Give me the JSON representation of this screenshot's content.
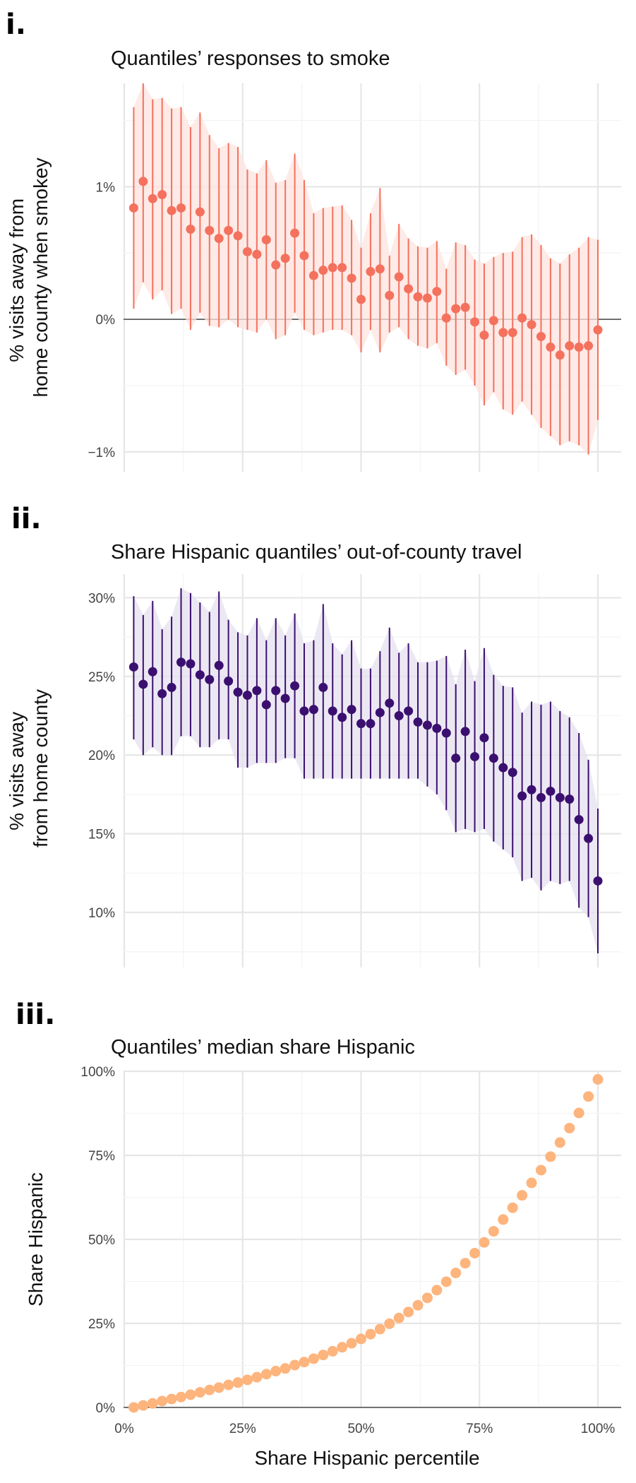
{
  "chart_data": [
    {
      "type": "scatter",
      "panel_label": "i.",
      "title": "Quantiles’ responses to smoke",
      "ylabel": "% visits away from home county when smokey",
      "xlim": [
        0,
        100
      ],
      "ylim": [
        -1.15,
        1.78
      ],
      "y_ticks": [
        -1,
        0,
        1
      ],
      "y_tick_labels": [
        "−1%",
        "0%",
        "1%"
      ],
      "zero_line": true,
      "color": "#f4715e",
      "band_color": "#fde3de",
      "x": [
        2,
        4,
        6,
        8,
        10,
        12,
        14,
        16,
        18,
        20,
        22,
        24,
        26,
        28,
        30,
        32,
        34,
        36,
        38,
        40,
        42,
        44,
        46,
        48,
        50,
        52,
        54,
        56,
        58,
        60,
        62,
        64,
        66,
        68,
        70,
        72,
        74,
        76,
        78,
        80,
        82,
        84,
        86,
        88,
        90,
        92,
        94,
        96,
        98,
        100
      ],
      "y": [
        0.84,
        1.04,
        0.91,
        0.94,
        0.82,
        0.84,
        0.68,
        0.81,
        0.67,
        0.61,
        0.67,
        0.63,
        0.51,
        0.49,
        0.6,
        0.41,
        0.46,
        0.65,
        0.48,
        0.33,
        0.37,
        0.39,
        0.39,
        0.31,
        0.15,
        0.36,
        0.38,
        0.18,
        0.32,
        0.23,
        0.17,
        0.16,
        0.21,
        0.01,
        0.08,
        0.09,
        -0.02,
        -0.12,
        -0.01,
        -0.1,
        -0.1,
        0.01,
        -0.04,
        -0.13,
        -0.21,
        -0.27,
        -0.2,
        -0.21,
        -0.2,
        -0.08
      ],
      "ci_low": [
        0.08,
        0.28,
        0.15,
        0.22,
        0.04,
        0.08,
        -0.08,
        0.05,
        -0.05,
        -0.06,
        0.0,
        -0.06,
        -0.08,
        -0.1,
        0.0,
        -0.15,
        -0.12,
        0.05,
        -0.08,
        -0.12,
        -0.1,
        -0.08,
        -0.08,
        -0.12,
        -0.25,
        -0.08,
        -0.25,
        -0.1,
        -0.06,
        -0.15,
        -0.2,
        -0.22,
        -0.18,
        -0.35,
        -0.42,
        -0.38,
        -0.5,
        -0.65,
        -0.55,
        -0.68,
        -0.72,
        -0.62,
        -0.72,
        -0.82,
        -0.88,
        -0.95,
        -0.92,
        -0.95,
        -1.02,
        -0.76
      ],
      "ci_high": [
        1.6,
        1.78,
        1.66,
        1.67,
        1.59,
        1.6,
        1.45,
        1.56,
        1.39,
        1.29,
        1.33,
        1.3,
        1.13,
        1.1,
        1.2,
        1.03,
        1.05,
        1.25,
        1.05,
        0.8,
        0.84,
        0.85,
        0.86,
        0.75,
        0.54,
        0.8,
        0.99,
        0.48,
        0.72,
        0.61,
        0.55,
        0.54,
        0.59,
        0.38,
        0.58,
        0.56,
        0.45,
        0.42,
        0.47,
        0.5,
        0.51,
        0.62,
        0.64,
        0.56,
        0.46,
        0.42,
        0.49,
        0.54,
        0.62,
        0.6
      ]
    },
    {
      "type": "scatter",
      "panel_label": "ii.",
      "title": "Share Hispanic quantiles’ out-of-county travel",
      "ylabel": "% visits away from home county",
      "xlim": [
        0,
        100
      ],
      "ylim": [
        6.5,
        31.5
      ],
      "y_ticks": [
        10,
        15,
        20,
        25,
        30
      ],
      "y_tick_labels": [
        "10%",
        "15%",
        "20%",
        "25%",
        "30%"
      ],
      "zero_line": false,
      "color": "#3b0f6f",
      "band_color": "#e5e0ef",
      "x": [
        2,
        4,
        6,
        8,
        10,
        12,
        14,
        16,
        18,
        20,
        22,
        24,
        26,
        28,
        30,
        32,
        34,
        36,
        38,
        40,
        42,
        44,
        46,
        48,
        50,
        52,
        54,
        56,
        58,
        60,
        62,
        64,
        66,
        68,
        70,
        72,
        74,
        76,
        78,
        80,
        82,
        84,
        86,
        88,
        90,
        92,
        94,
        96,
        98,
        100
      ],
      "y": [
        25.6,
        24.5,
        25.3,
        23.9,
        24.3,
        25.9,
        25.8,
        25.1,
        24.8,
        25.7,
        24.7,
        24.0,
        23.8,
        24.1,
        23.2,
        24.1,
        23.6,
        24.4,
        22.8,
        22.9,
        24.3,
        22.8,
        22.4,
        22.9,
        22.0,
        22.0,
        22.7,
        23.3,
        22.5,
        22.8,
        22.1,
        21.9,
        21.7,
        21.4,
        19.8,
        21.5,
        19.9,
        21.1,
        19.8,
        19.2,
        18.9,
        17.4,
        17.8,
        17.3,
        17.7,
        17.3,
        17.2,
        15.9,
        14.7,
        12.0
      ],
      "ci_low": [
        21.0,
        20.0,
        20.5,
        20.0,
        20.0,
        21.2,
        21.2,
        20.5,
        20.5,
        21.0,
        21.0,
        19.2,
        19.2,
        19.5,
        19.5,
        19.5,
        19.8,
        19.8,
        18.5,
        18.5,
        18.5,
        18.5,
        18.5,
        18.5,
        18.5,
        18.5,
        18.5,
        18.5,
        18.5,
        18.5,
        18.5,
        18.0,
        17.5,
        16.5,
        15.1,
        15.3,
        15.1,
        15.3,
        14.5,
        14.0,
        13.5,
        12.0,
        12.2,
        11.4,
        12.0,
        11.8,
        12.0,
        10.3,
        9.7,
        7.4
      ],
      "ci_high": [
        30.1,
        28.9,
        29.8,
        28.0,
        28.8,
        30.6,
        30.3,
        29.7,
        29.1,
        30.4,
        28.6,
        27.8,
        27.6,
        28.7,
        27.3,
        28.7,
        27.6,
        29.0,
        27.1,
        27.3,
        29.6,
        27.1,
        26.4,
        27.3,
        25.5,
        25.5,
        26.6,
        28.1,
        26.5,
        27.1,
        25.9,
        25.9,
        26.0,
        26.3,
        24.5,
        26.7,
        24.7,
        26.8,
        25.1,
        24.4,
        24.3,
        22.7,
        23.4,
        23.2,
        23.4,
        22.8,
        22.4,
        21.4,
        19.7,
        16.6
      ]
    },
    {
      "type": "scatter",
      "panel_label": "iii.",
      "title": "Quantiles’ median share Hispanic",
      "xlabel": "Share Hispanic percentile",
      "ylabel": "Share Hispanic",
      "xlim": [
        0,
        100
      ],
      "ylim": [
        0,
        100
      ],
      "x_ticks": [
        0,
        25,
        50,
        75,
        100
      ],
      "x_tick_labels": [
        "0%",
        "25%",
        "50%",
        "75%",
        "100%"
      ],
      "y_ticks": [
        0,
        25,
        50,
        75,
        100
      ],
      "y_tick_labels": [
        "0%",
        "25%",
        "50%",
        "75%",
        "100%"
      ],
      "zero_line": true,
      "color": "#fdb47d",
      "x": [
        2,
        4,
        6,
        8,
        10,
        12,
        14,
        16,
        18,
        20,
        22,
        24,
        26,
        28,
        30,
        32,
        34,
        36,
        38,
        40,
        42,
        44,
        46,
        48,
        50,
        52,
        54,
        56,
        58,
        60,
        62,
        64,
        66,
        68,
        70,
        72,
        74,
        76,
        78,
        80,
        82,
        84,
        86,
        88,
        90,
        92,
        94,
        96,
        98,
        100
      ],
      "y": [
        0.0,
        0.6,
        1.2,
        1.9,
        2.5,
        3.1,
        3.8,
        4.5,
        5.2,
        5.9,
        6.7,
        7.4,
        8.2,
        9.0,
        9.9,
        10.8,
        11.6,
        12.6,
        13.5,
        14.5,
        15.6,
        16.7,
        17.9,
        19.1,
        20.4,
        21.8,
        23.3,
        24.9,
        26.6,
        28.4,
        30.4,
        32.6,
        34.9,
        37.4,
        40.0,
        42.9,
        45.9,
        49.1,
        52.4,
        55.9,
        59.4,
        63.1,
        66.8,
        70.6,
        74.6,
        78.8,
        83.1,
        87.6,
        92.5,
        97.6
      ]
    }
  ]
}
